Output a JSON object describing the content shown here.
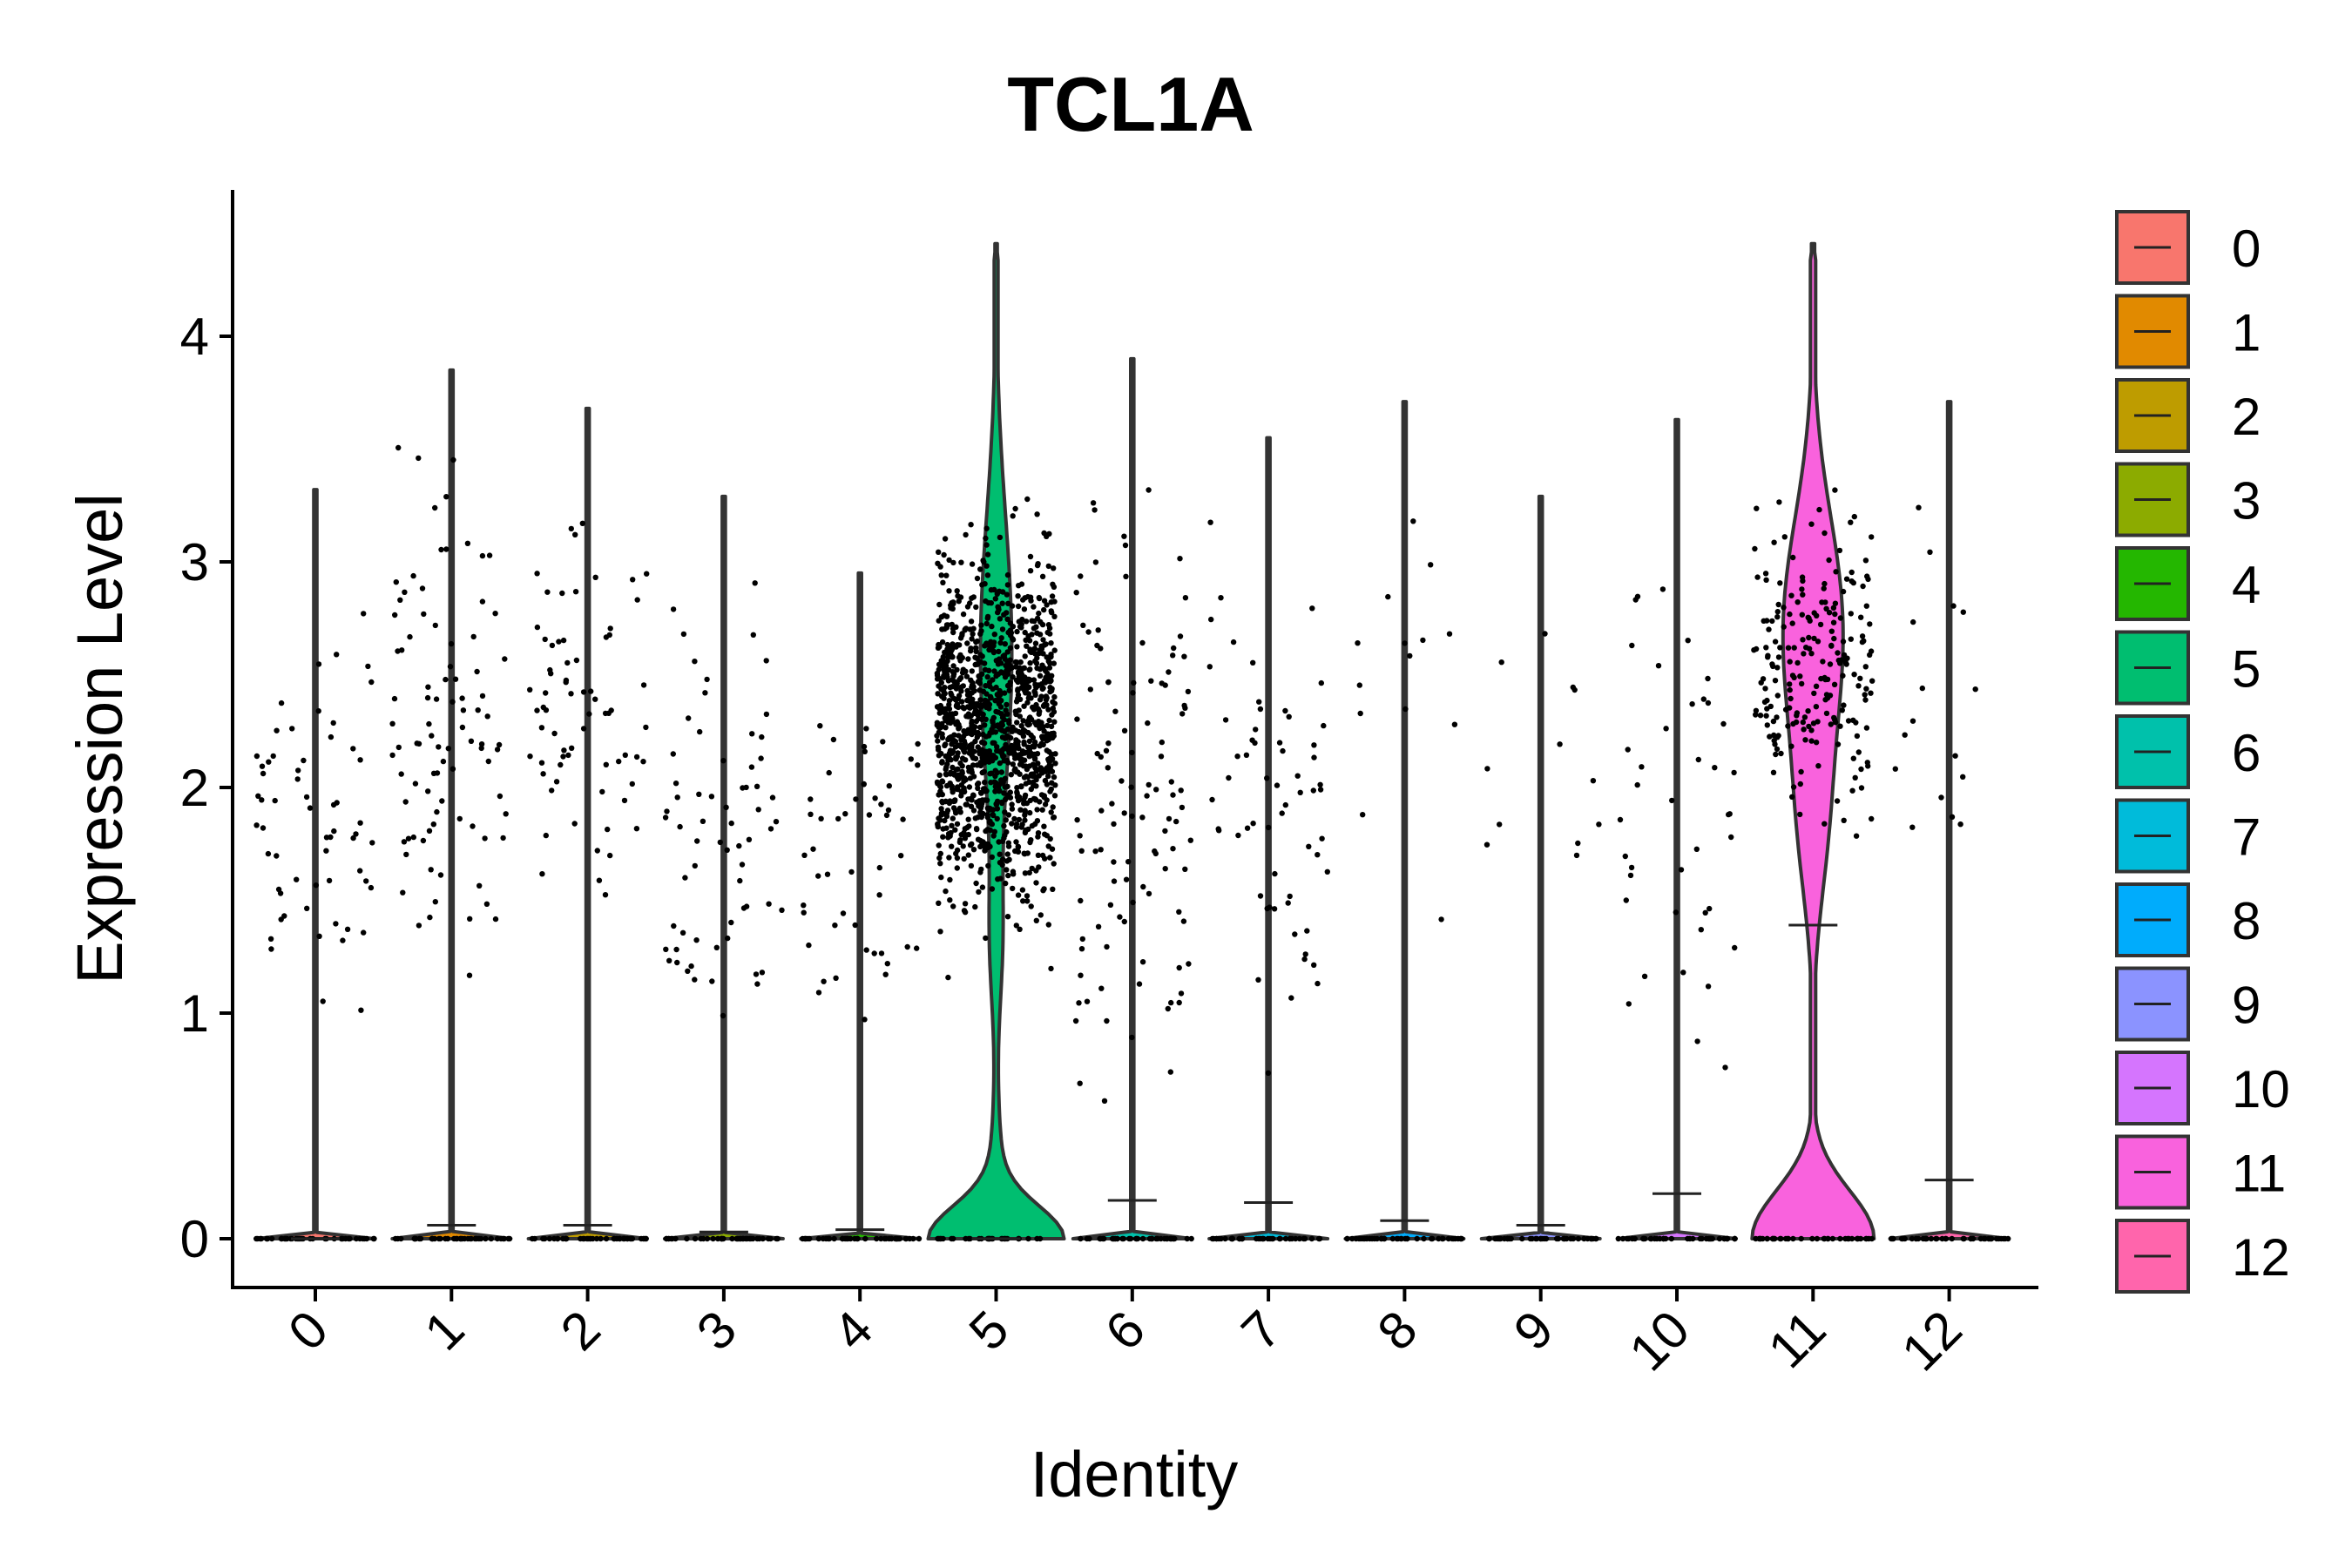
{
  "chart_data": {
    "type": "violin",
    "title": "TCL1A",
    "xlabel": "Identity",
    "ylabel": "Expression Level",
    "ylim": [
      -0.22,
      4.65
    ],
    "yticks": [
      "0",
      "1",
      "2",
      "3",
      "4"
    ],
    "categories": [
      "0",
      "1",
      "2",
      "3",
      "4",
      "5",
      "6",
      "7",
      "8",
      "9",
      "10",
      "11",
      "12"
    ],
    "colors": [
      "#F8766D",
      "#E18A00",
      "#BE9C00",
      "#8CAB00",
      "#24B700",
      "#00BE70",
      "#00C1AB",
      "#00BBDA",
      "#00ACFC",
      "#8B93FF",
      "#D575FE",
      "#F962DD",
      "#FF65AC"
    ],
    "max_values": [
      3.32,
      3.85,
      3.68,
      3.29,
      2.95,
      4.41,
      3.9,
      3.55,
      3.71,
      3.29,
      3.63,
      4.41,
      3.71
    ],
    "median_values": [
      0.0,
      0.06,
      0.06,
      0.03,
      0.04,
      0.0,
      0.17,
      0.16,
      0.08,
      0.06,
      0.2,
      1.39,
      0.26
    ],
    "nonzero_cell_counts": [
      60,
      90,
      70,
      65,
      50,
      1300,
      110,
      60,
      14,
      12,
      40,
      220,
      16
    ],
    "nonzero_ranges": [
      [
        0.75,
        3.3
      ],
      [
        1.0,
        3.85
      ],
      [
        1.4,
        3.7
      ],
      [
        0.65,
        3.3
      ],
      [
        0.8,
        2.95
      ],
      [
        0.65,
        4.41
      ],
      [
        0.45,
        3.9
      ],
      [
        0.65,
        3.55
      ],
      [
        1.3,
        3.7
      ],
      [
        1.2,
        3.3
      ],
      [
        0.75,
        3.6
      ],
      [
        0.6,
        4.41
      ],
      [
        1.55,
        3.71
      ]
    ],
    "legend": {
      "position": "right",
      "entries": [
        "0",
        "1",
        "2",
        "3",
        "4",
        "5",
        "6",
        "7",
        "8",
        "9",
        "10",
        "11",
        "12"
      ]
    }
  }
}
